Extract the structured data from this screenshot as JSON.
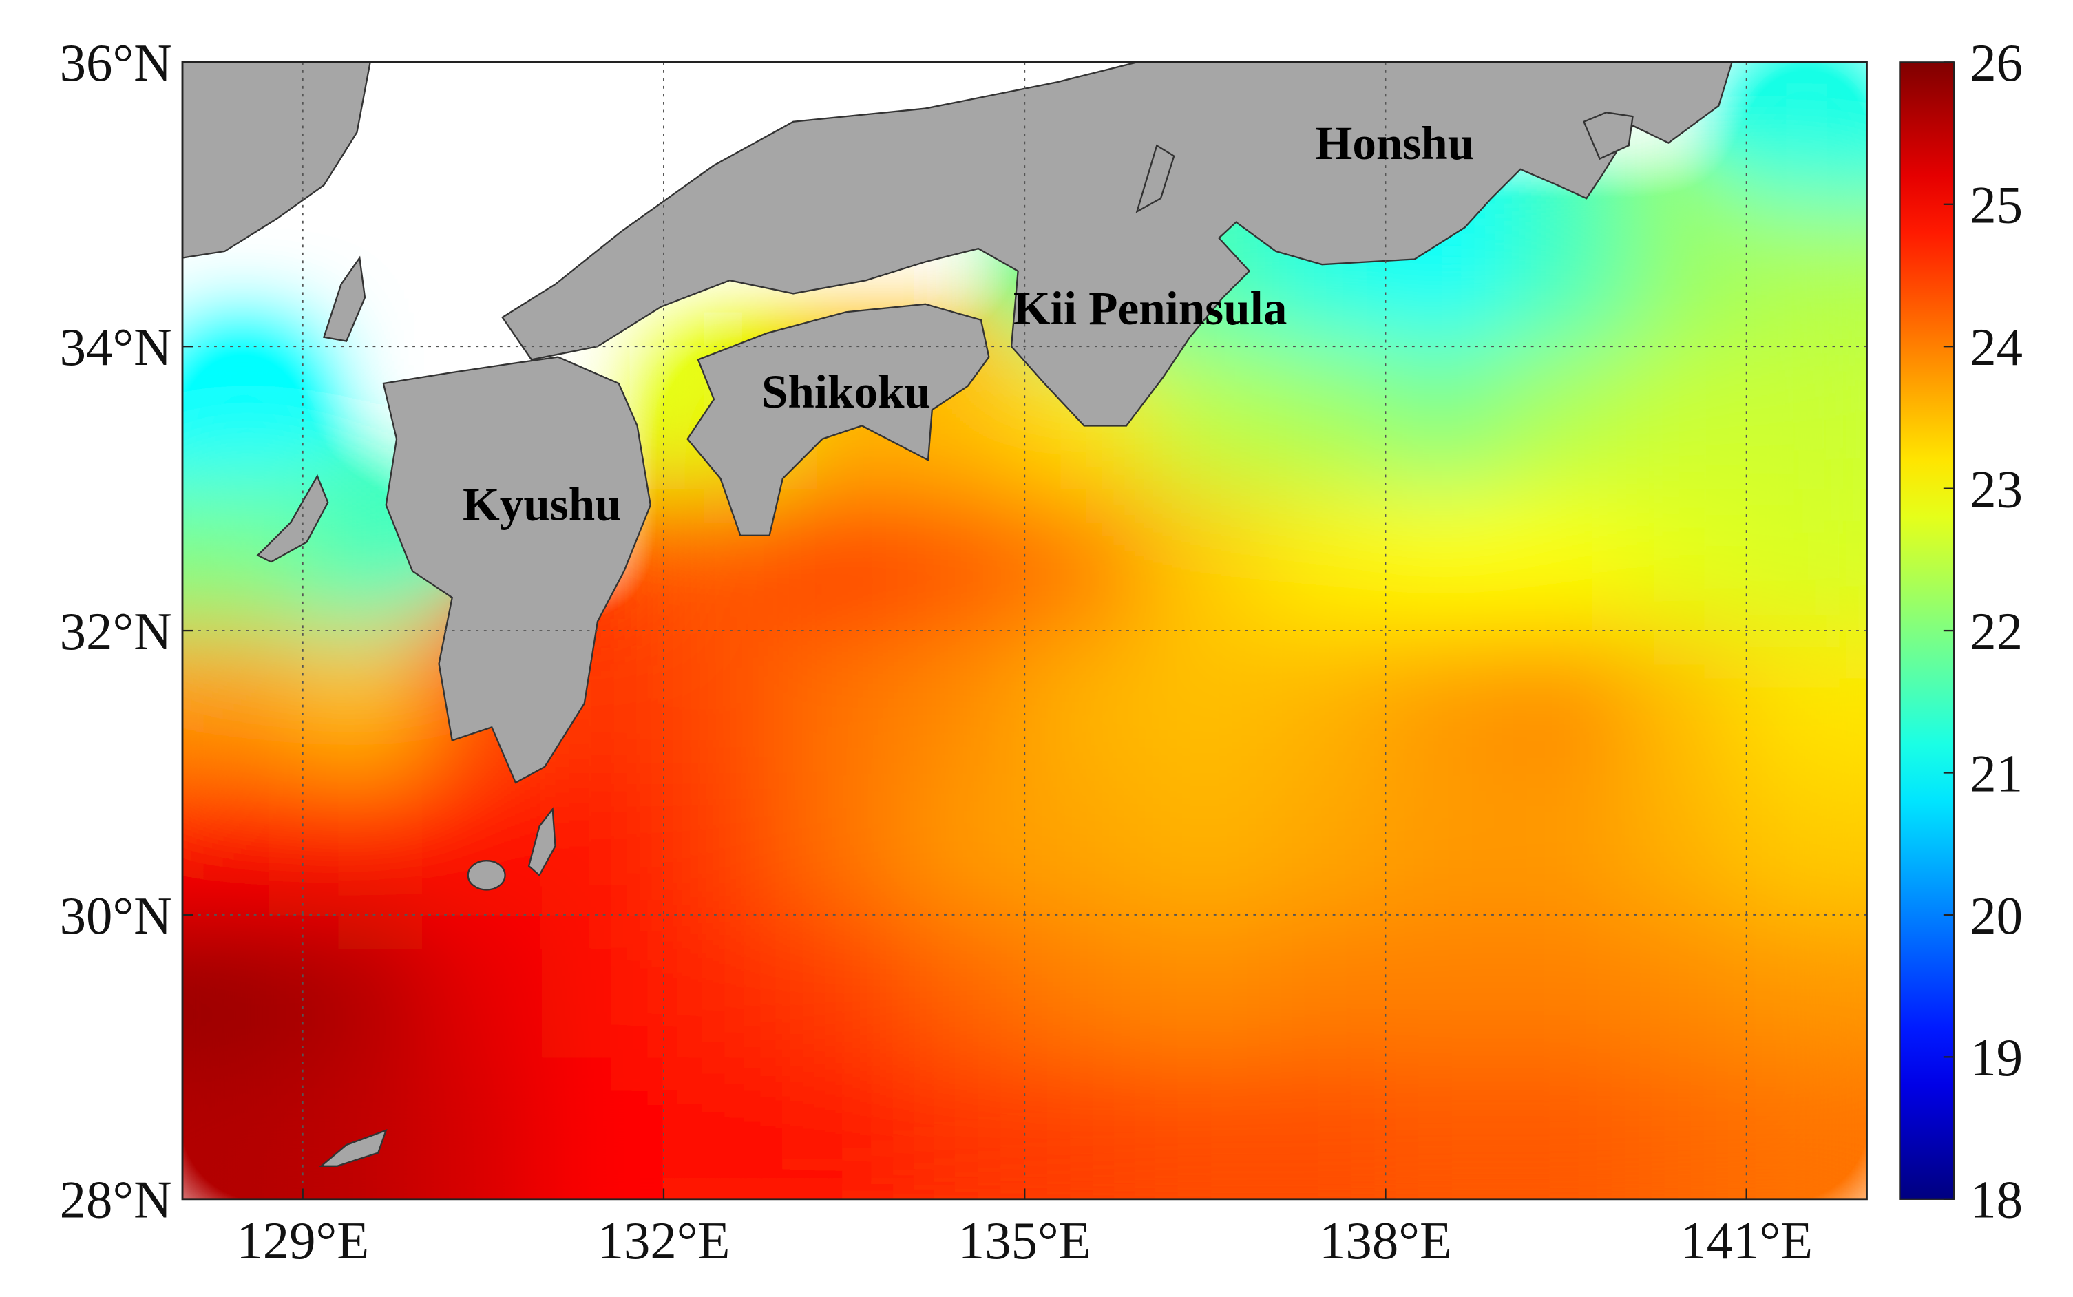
{
  "chart_data": {
    "type": "heatmap",
    "x": [
      128.5,
      129.5,
      130.5,
      131.5,
      132.5,
      133.5,
      134.5,
      135.5,
      136.5,
      137.5,
      138.5,
      139.5,
      140.5,
      141.5
    ],
    "y": [
      28.5,
      29.5,
      30.5,
      31.5,
      32.5,
      33.5,
      34.5,
      35.5
    ],
    "z": [
      [
        25.6,
        25.5,
        25.3,
        25.0,
        24.9,
        24.8,
        24.6,
        24.5,
        24.4,
        24.4,
        24.3,
        24.3,
        24.2,
        24.1
      ],
      [
        25.8,
        25.6,
        25.2,
        24.9,
        24.7,
        24.5,
        24.2,
        24.0,
        23.9,
        24.0,
        24.0,
        24.0,
        23.9,
        23.8
      ],
      [
        25.0,
        24.8,
        24.9,
        24.8,
        24.5,
        24.1,
        23.8,
        23.7,
        23.6,
        23.7,
        23.8,
        23.8,
        23.6,
        23.4
      ],
      [
        23.8,
        23.5,
        24.4,
        24.6,
        24.4,
        24.1,
        23.9,
        23.6,
        23.5,
        23.6,
        23.8,
        23.9,
        23.5,
        23.2
      ],
      [
        22.0,
        21.5,
        null,
        null,
        24.3,
        24.5,
        24.3,
        24.0,
        23.4,
        23.1,
        23.0,
        23.0,
        22.8,
        22.7
      ],
      [
        21.0,
        null,
        null,
        null,
        22.8,
        23.6,
        23.5,
        23.2,
        22.5,
        22.3,
        22.0,
        22.4,
        22.6,
        22.6
      ],
      [
        null,
        null,
        null,
        null,
        null,
        null,
        null,
        21.8,
        21.6,
        21.2,
        21.0,
        21.5,
        22.2,
        22.4
      ],
      [
        null,
        null,
        null,
        null,
        null,
        null,
        null,
        null,
        null,
        null,
        null,
        null,
        null,
        21.2
      ]
    ],
    "xlim": [
      128,
      142
    ],
    "ylim": [
      28,
      36
    ],
    "xticks": [
      {
        "value": 129,
        "label": "129°E"
      },
      {
        "value": 132,
        "label": "132°E"
      },
      {
        "value": 135,
        "label": "135°E"
      },
      {
        "value": 138,
        "label": "138°E"
      },
      {
        "value": 141,
        "label": "141°E"
      }
    ],
    "yticks": [
      {
        "value": 28,
        "label": "28°N"
      },
      {
        "value": 30,
        "label": "30°N"
      },
      {
        "value": 32,
        "label": "32°N"
      },
      {
        "value": 34,
        "label": "34°N"
      },
      {
        "value": 36,
        "label": "36°N"
      }
    ],
    "grid": true,
    "colormap": "jet",
    "clim": [
      18,
      26
    ],
    "cticks": [
      18,
      19,
      20,
      21,
      22,
      23,
      24,
      25,
      26
    ],
    "annotations": [
      "Honshu",
      "Kii Peninsula",
      "Shikoku",
      "Kyushu"
    ]
  }
}
